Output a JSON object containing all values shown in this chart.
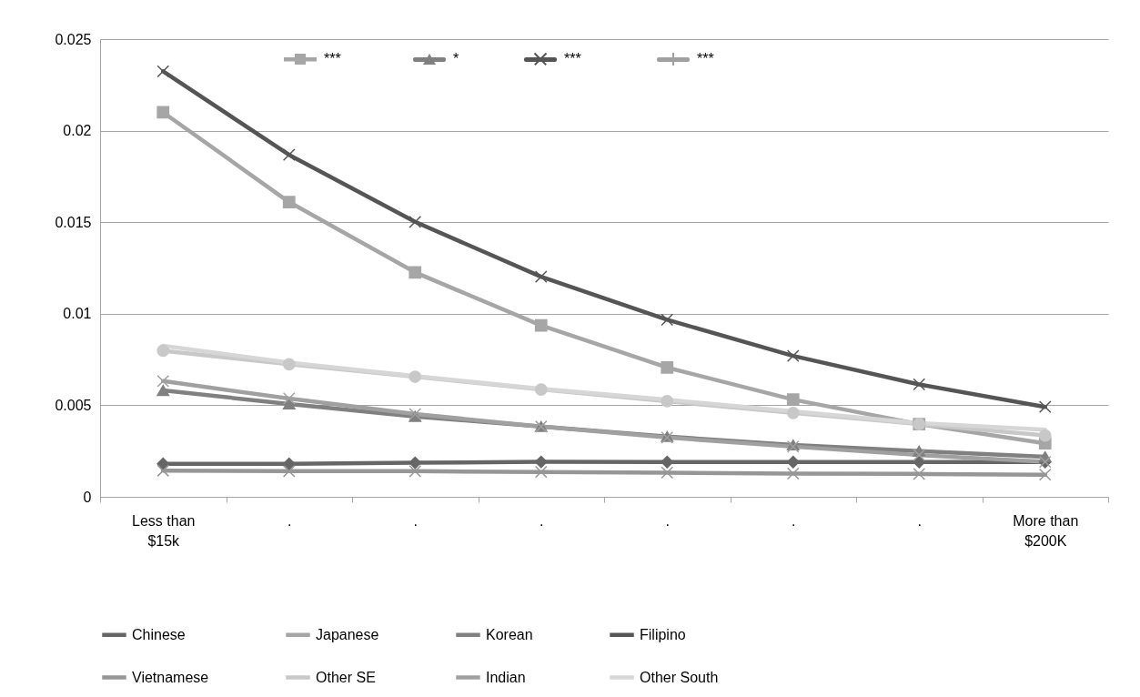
{
  "chart_data": {
    "type": "line",
    "categories": [
      "Less than $15k",
      ".",
      ".",
      ".",
      ".",
      ".",
      ".",
      "More than $200K"
    ],
    "series": [
      {
        "name": "Chinese",
        "color": "#666666",
        "marker": "diamond",
        "values": [
          0.0018,
          0.0018,
          0.00186,
          0.00191,
          0.0019,
          0.0019,
          0.0019,
          0.0019
        ]
      },
      {
        "name": "Japanese",
        "color": "#a6a6a6",
        "marker": "square",
        "values": [
          0.021,
          0.0161,
          0.01226,
          0.00936,
          0.00706,
          0.00531,
          0.00397,
          0.00292
        ]
      },
      {
        "name": "Korean",
        "color": "#808080",
        "marker": "triangle",
        "values": [
          0.00581,
          0.00507,
          0.00439,
          0.00384,
          0.00329,
          0.00283,
          0.0025,
          0.00219
        ]
      },
      {
        "name": "Filipino",
        "color": "#555555",
        "marker": "cross",
        "values": [
          0.02324,
          0.01868,
          0.01502,
          0.01202,
          0.00967,
          0.0077,
          0.00614,
          0.00491
        ]
      },
      {
        "name": "Vietnamese",
        "color": "#969696",
        "marker": "cross",
        "values": [
          0.00143,
          0.0014,
          0.0014,
          0.00136,
          0.00132,
          0.00127,
          0.00125,
          0.00121
        ]
      },
      {
        "name": "Other SE",
        "color": "#c8c8c8",
        "marker": "circle",
        "values": [
          0.00798,
          0.00724,
          0.00656,
          0.00586,
          0.00522,
          0.00458,
          0.00397,
          0.00335
        ]
      },
      {
        "name": "Indian",
        "color": "#a0a0a0",
        "marker": "cross",
        "values": [
          0.00632,
          0.00537,
          0.00452,
          0.00384,
          0.00324,
          0.00274,
          0.00228,
          0.00191
        ]
      },
      {
        "name": "Other South",
        "color": "#d6d6d6",
        "marker": "none",
        "values": [
          0.00825,
          0.00733,
          0.0066,
          0.0059,
          0.0053,
          0.00467,
          0.00403,
          0.00366
        ]
      }
    ],
    "ylim": [
      0,
      0.025
    ],
    "yticks": [
      0,
      0.005,
      0.01,
      0.015,
      0.02,
      0.025
    ],
    "grid": "y",
    "legend": "bottom",
    "line_style": "solid",
    "annotations": [
      "***",
      "*",
      "***",
      "***"
    ]
  }
}
